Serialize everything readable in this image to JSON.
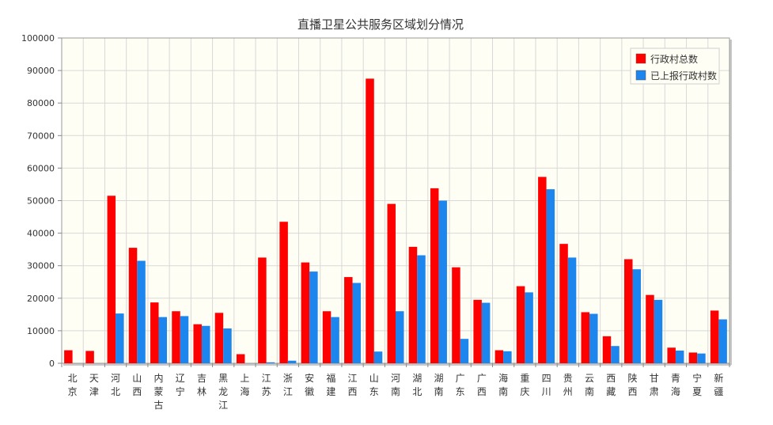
{
  "chart_data": {
    "type": "bar",
    "title": "直播卫星公共服务区域划分情况",
    "xlabel": "",
    "ylabel": "",
    "ylim": [
      0,
      100000
    ],
    "yticks": [
      0,
      10000,
      20000,
      30000,
      40000,
      50000,
      60000,
      70000,
      80000,
      90000,
      100000
    ],
    "grid": true,
    "legend_position": "top-right",
    "categories": [
      "北京",
      "天津",
      "河北",
      "山西",
      "内蒙古",
      "辽宁",
      "吉林",
      "黑龙江",
      "上海",
      "江苏",
      "浙江",
      "安徽",
      "福建",
      "江西",
      "山东",
      "河南",
      "湖北",
      "湖南",
      "广东",
      "广西",
      "海南",
      "重庆",
      "四川",
      "贵州",
      "云南",
      "西藏",
      "陕西",
      "甘肃",
      "青海",
      "宁夏",
      "新疆"
    ],
    "series": [
      {
        "name": "行政村总数",
        "color": "#ff0000",
        "values": [
          4000,
          3800,
          51500,
          35500,
          18700,
          16000,
          12000,
          15500,
          2800,
          32500,
          43500,
          31000,
          16000,
          26500,
          87500,
          49000,
          35800,
          53800,
          29500,
          19500,
          4000,
          23700,
          57300,
          36700,
          15700,
          8300,
          32000,
          21000,
          4800,
          3300,
          16200
        ]
      },
      {
        "name": "已上报行政村数",
        "color": "#1c86ee",
        "values": [
          0,
          0,
          15300,
          31500,
          14200,
          14500,
          11500,
          10700,
          0,
          300,
          800,
          28200,
          14200,
          24700,
          3600,
          16000,
          33200,
          50000,
          7500,
          18600,
          3700,
          21800,
          53500,
          32500,
          15200,
          5300,
          28900,
          19500,
          3900,
          3000,
          13500
        ]
      }
    ]
  }
}
